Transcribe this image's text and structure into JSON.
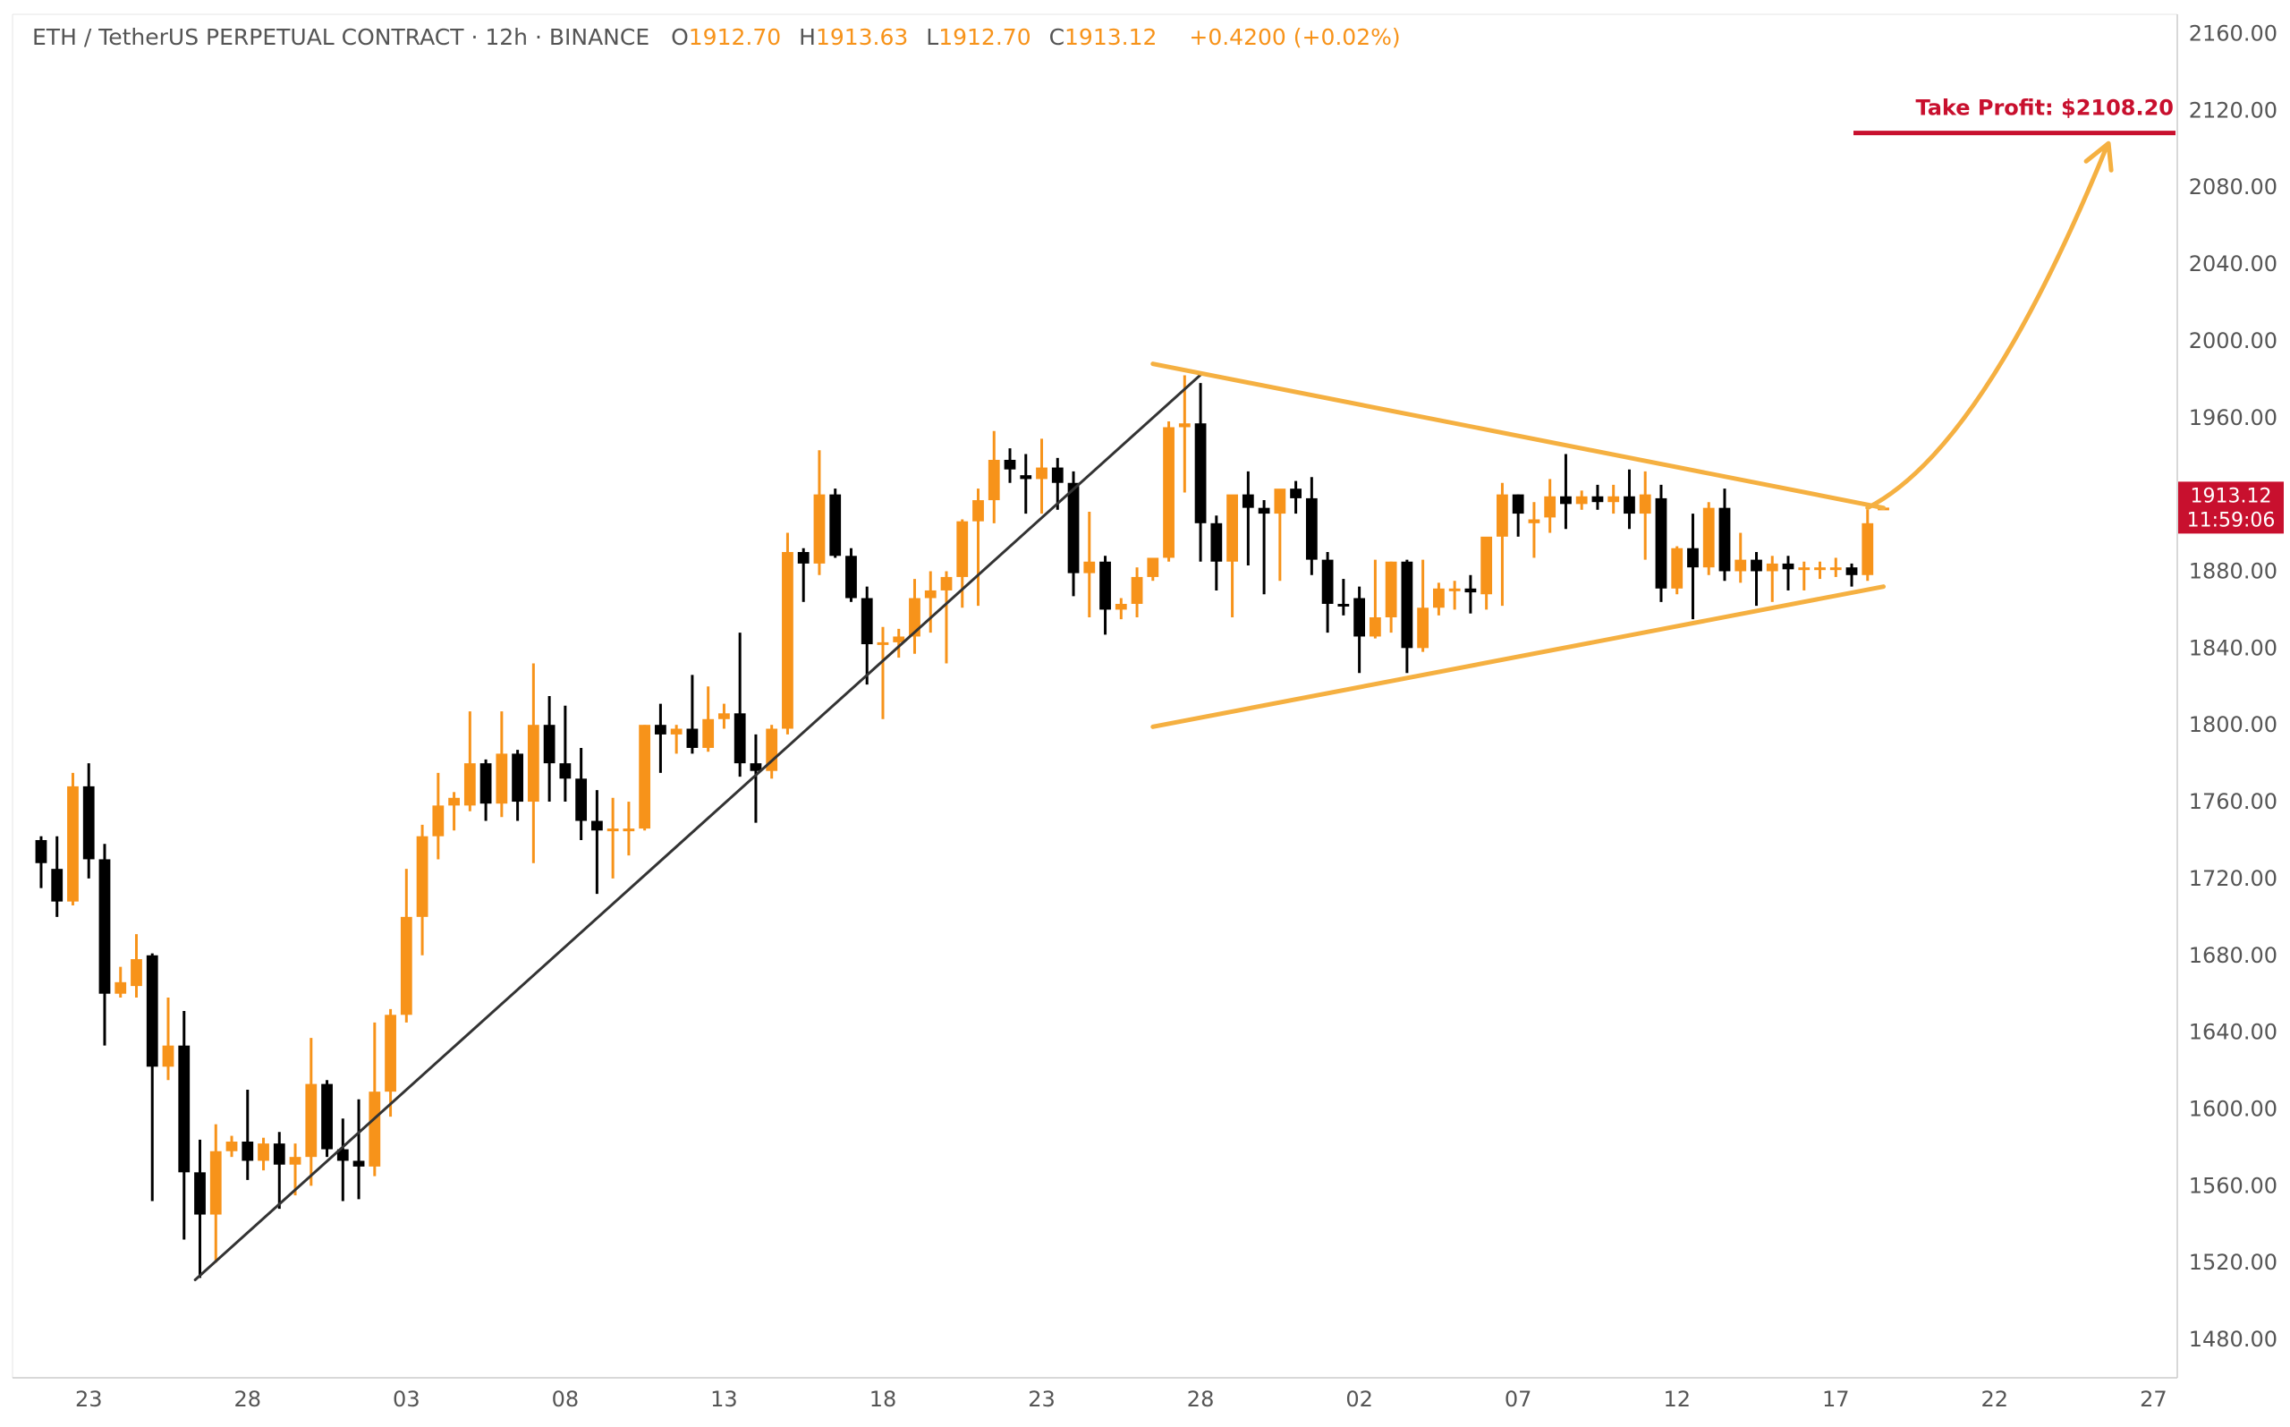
{
  "header": {
    "symbol": "ETH / TetherUS PERPETUAL CONTRACT · 12h · BINANCE",
    "o_label": "O",
    "o_value": "1912.70",
    "h_label": "H",
    "h_value": "1913.63",
    "l_label": "L",
    "l_value": "1912.70",
    "c_label": "C",
    "c_value": "1913.12",
    "change": "+0.4200 (+0.02%)"
  },
  "price_tag": {
    "price": "1913.12",
    "countdown": "11:59:06"
  },
  "take_profit": {
    "label": "Take Profit: $2108.20",
    "value": 2108.2
  },
  "colors": {
    "up": "#f7931a",
    "down": "#000000",
    "accent": "#f7931a",
    "trendline": "#f5b041",
    "take_profit": "#c8102e",
    "axis_text": "#555555",
    "arrow": "#f5b041"
  },
  "chart_data": {
    "type": "candlestick",
    "ylim": [
      1460,
      2170
    ],
    "y_ticks": [
      1480,
      1520,
      1560,
      1600,
      1640,
      1680,
      1720,
      1760,
      1800,
      1840,
      1880,
      1920,
      1960,
      2000,
      2040,
      2080,
      2120,
      2160
    ],
    "y_tick_labels": [
      "1480.00",
      "1520.00",
      "1560.00",
      "1600.00",
      "1640.00",
      "1680.00",
      "1720.00",
      "1760.00",
      "1800.00",
      "1840.00",
      "1880.00",
      "1920.00",
      "1960.00",
      "2000.00",
      "2040.00",
      "2080.00",
      "2120.00",
      "2160.00"
    ],
    "x_ticks": [
      {
        "index": 3,
        "label": "23"
      },
      {
        "index": 13,
        "label": "28"
      },
      {
        "index": 23,
        "label": "03"
      },
      {
        "index": 33,
        "label": "08"
      },
      {
        "index": 43,
        "label": "13"
      },
      {
        "index": 53,
        "label": "18"
      },
      {
        "index": 63,
        "label": "23"
      },
      {
        "index": 73,
        "label": "28"
      },
      {
        "index": 83,
        "label": "02"
      },
      {
        "index": 93,
        "label": "07"
      },
      {
        "index": 103,
        "label": "12"
      },
      {
        "index": 113,
        "label": "17"
      },
      {
        "index": 123,
        "label": "22"
      },
      {
        "index": 133,
        "label": "27"
      }
    ],
    "index_range": [
      -1.8,
      134.5
    ],
    "candles": [
      [
        1740,
        1742,
        1715,
        1728
      ],
      [
        1725,
        1742,
        1700,
        1708
      ],
      [
        1708,
        1775,
        1706,
        1768
      ],
      [
        1768,
        1780,
        1720,
        1730
      ],
      [
        1730,
        1738,
        1633,
        1660
      ],
      [
        1660,
        1674,
        1658,
        1666
      ],
      [
        1664,
        1691,
        1658,
        1678
      ],
      [
        1680,
        1681,
        1552,
        1622
      ],
      [
        1622,
        1658,
        1615,
        1633
      ],
      [
        1633,
        1651,
        1532,
        1567
      ],
      [
        1567,
        1584,
        1512,
        1545
      ],
      [
        1545,
        1592,
        1520,
        1578
      ],
      [
        1578,
        1586,
        1575,
        1583
      ],
      [
        1583,
        1610,
        1563,
        1573
      ],
      [
        1573,
        1585,
        1568,
        1582
      ],
      [
        1582,
        1588,
        1548,
        1571
      ],
      [
        1571,
        1582,
        1555,
        1575
      ],
      [
        1575,
        1637,
        1560,
        1613
      ],
      [
        1613,
        1615,
        1575,
        1579
      ],
      [
        1579,
        1595,
        1552,
        1573
      ],
      [
        1573,
        1605,
        1553,
        1570
      ],
      [
        1570,
        1645,
        1565,
        1609
      ],
      [
        1609,
        1652,
        1596,
        1649
      ],
      [
        1649,
        1725,
        1645,
        1700
      ],
      [
        1700,
        1748,
        1680,
        1742
      ],
      [
        1742,
        1775,
        1730,
        1758
      ],
      [
        1758,
        1765,
        1745,
        1762
      ],
      [
        1758,
        1807,
        1755,
        1780
      ],
      [
        1780,
        1782,
        1750,
        1759
      ],
      [
        1759,
        1807,
        1752,
        1785
      ],
      [
        1785,
        1787,
        1750,
        1760
      ],
      [
        1760,
        1832,
        1728,
        1800
      ],
      [
        1800,
        1815,
        1760,
        1780
      ],
      [
        1780,
        1810,
        1760,
        1772
      ],
      [
        1772,
        1788,
        1740,
        1750
      ],
      [
        1750,
        1766,
        1712,
        1745
      ],
      [
        1745,
        1762,
        1720,
        1746
      ],
      [
        1746,
        1760,
        1732,
        1746
      ],
      [
        1746,
        1800,
        1745,
        1800
      ],
      [
        1800,
        1811,
        1775,
        1795
      ],
      [
        1795,
        1800,
        1785,
        1798
      ],
      [
        1798,
        1826,
        1785,
        1788
      ],
      [
        1788,
        1820,
        1786,
        1803
      ],
      [
        1803,
        1811,
        1798,
        1806
      ],
      [
        1806,
        1848,
        1773,
        1780
      ],
      [
        1780,
        1795,
        1749,
        1776
      ],
      [
        1776,
        1800,
        1772,
        1798
      ],
      [
        1798,
        1900,
        1795,
        1890
      ],
      [
        1890,
        1892,
        1864,
        1884
      ],
      [
        1884,
        1943,
        1878,
        1920
      ],
      [
        1920,
        1923,
        1887,
        1888
      ],
      [
        1888,
        1892,
        1864,
        1866
      ],
      [
        1866,
        1872,
        1821,
        1842
      ],
      [
        1842,
        1851,
        1803,
        1843
      ],
      [
        1843,
        1850,
        1835,
        1846
      ],
      [
        1846,
        1876,
        1837,
        1866
      ],
      [
        1866,
        1880,
        1848,
        1870
      ],
      [
        1870,
        1880,
        1832,
        1877
      ],
      [
        1877,
        1907,
        1861,
        1906
      ],
      [
        1906,
        1923,
        1862,
        1917
      ],
      [
        1917,
        1953,
        1905,
        1938
      ],
      [
        1938,
        1944,
        1926,
        1933
      ],
      [
        1930,
        1941,
        1910,
        1928
      ],
      [
        1928,
        1949,
        1910,
        1934
      ],
      [
        1934,
        1939,
        1912,
        1926
      ],
      [
        1926,
        1932,
        1867,
        1879
      ],
      [
        1879,
        1911,
        1856,
        1885
      ],
      [
        1885,
        1888,
        1847,
        1860
      ],
      [
        1860,
        1866,
        1855,
        1863
      ],
      [
        1863,
        1882,
        1856,
        1877
      ],
      [
        1877,
        1885,
        1875,
        1887
      ],
      [
        1887,
        1958,
        1885,
        1955
      ],
      [
        1955,
        1982,
        1921,
        1957
      ],
      [
        1957,
        1978,
        1885,
        1905
      ],
      [
        1905,
        1909,
        1870,
        1885
      ],
      [
        1885,
        1916,
        1856,
        1920
      ],
      [
        1920,
        1932,
        1883,
        1913
      ],
      [
        1913,
        1917,
        1868,
        1910
      ],
      [
        1910,
        1917,
        1875,
        1923
      ],
      [
        1923,
        1927,
        1910,
        1918
      ],
      [
        1918,
        1929,
        1878,
        1886
      ],
      [
        1886,
        1890,
        1848,
        1863
      ],
      [
        1863,
        1876,
        1857,
        1862
      ],
      [
        1866,
        1872,
        1827,
        1846
      ],
      [
        1846,
        1886,
        1845,
        1856
      ],
      [
        1856,
        1885,
        1848,
        1885
      ],
      [
        1885,
        1886,
        1827,
        1840
      ],
      [
        1840,
        1886,
        1838,
        1861
      ],
      [
        1861,
        1874,
        1857,
        1871
      ],
      [
        1871,
        1875,
        1860,
        1871
      ],
      [
        1871,
        1878,
        1858,
        1869
      ],
      [
        1868,
        1893,
        1860,
        1898
      ],
      [
        1898,
        1926,
        1862,
        1920
      ],
      [
        1920,
        1920,
        1898,
        1910
      ],
      [
        1905,
        1916,
        1887,
        1907
      ],
      [
        1908,
        1928,
        1900,
        1919
      ],
      [
        1919,
        1941,
        1902,
        1915
      ],
      [
        1915,
        1922,
        1912,
        1919
      ],
      [
        1919,
        1925,
        1912,
        1916
      ],
      [
        1916,
        1925,
        1910,
        1919
      ],
      [
        1919,
        1933,
        1902,
        1910
      ],
      [
        1910,
        1932,
        1886,
        1920
      ],
      [
        1918,
        1925,
        1864,
        1871
      ],
      [
        1871,
        1893,
        1868,
        1892
      ],
      [
        1892,
        1910,
        1855,
        1882
      ],
      [
        1882,
        1916,
        1878,
        1913
      ],
      [
        1913,
        1923,
        1875,
        1880
      ],
      [
        1880,
        1900,
        1874,
        1886
      ],
      [
        1886,
        1890,
        1862,
        1880
      ],
      [
        1880,
        1888,
        1864,
        1884
      ],
      [
        1884,
        1888,
        1870,
        1881
      ],
      [
        1881,
        1885,
        1870,
        1882
      ],
      [
        1882,
        1885,
        1876,
        1882
      ],
      [
        1882,
        1887,
        1877,
        1882
      ],
      [
        1882,
        1884,
        1872,
        1878
      ],
      [
        1878,
        1912,
        1875,
        1905
      ],
      [
        1912.7,
        1913.63,
        1912.7,
        1913.12
      ]
    ],
    "trendlines": [
      {
        "name": "rising",
        "points": [
          [
            9.7,
            1511
          ],
          [
            73.1,
            1983
          ]
        ]
      },
      {
        "name": "upper",
        "points": [
          [
            70,
            1988
          ],
          [
            116,
            1913
          ]
        ]
      },
      {
        "name": "lower",
        "points": [
          [
            70,
            1799
          ],
          [
            116,
            1872
          ]
        ]
      }
    ],
    "projection": {
      "points": [
        [
          115,
          1913
        ],
        [
          120,
          1925
        ],
        [
          130,
          2100
        ]
      ]
    }
  }
}
